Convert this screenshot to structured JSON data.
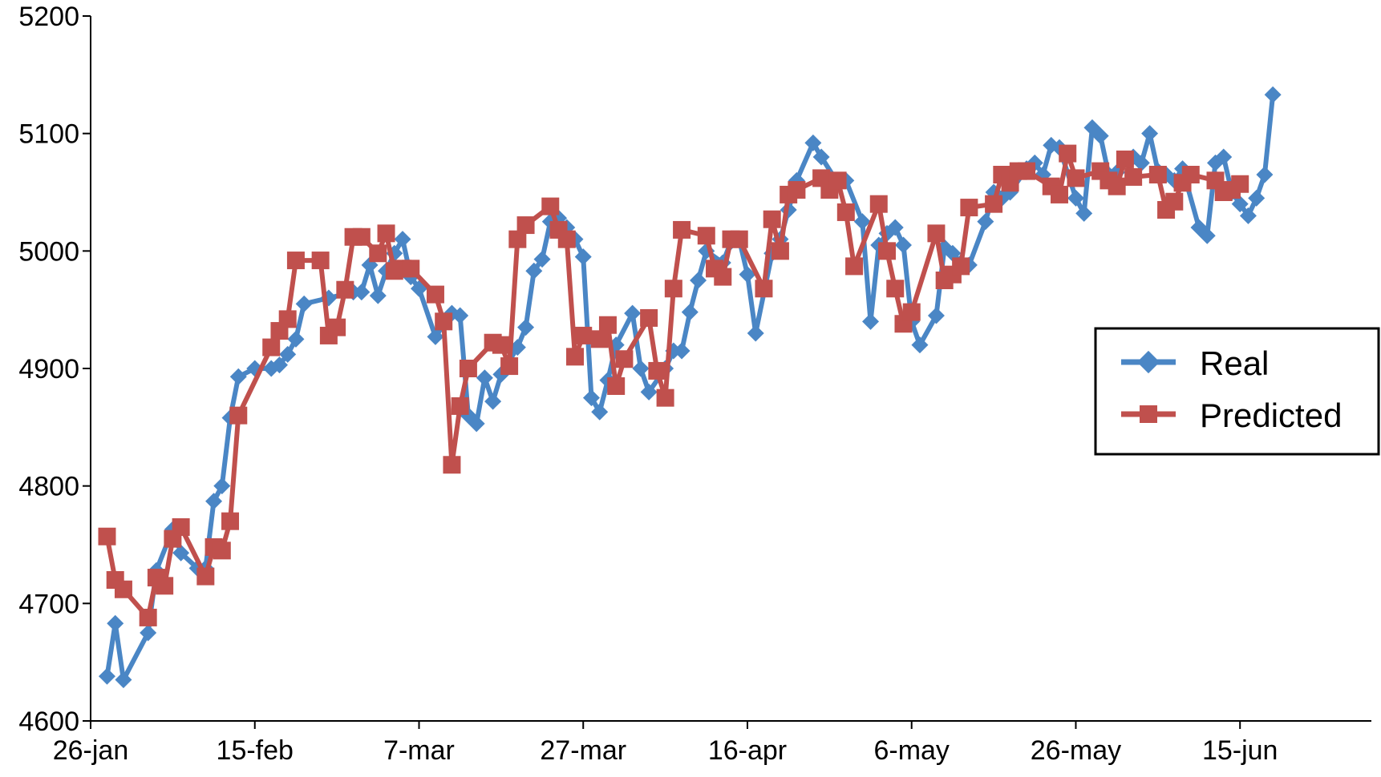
{
  "chart_data": {
    "type": "line",
    "title": "",
    "xlabel": "",
    "ylabel": "",
    "x_unit": "date",
    "xlim": [
      "26-jan",
      "1-jul"
    ],
    "ylim": [
      4600,
      5200
    ],
    "y_ticks": [
      4600,
      4700,
      4800,
      4900,
      5000,
      5100,
      5200
    ],
    "x_ticks": [
      "26-jan",
      "15-feb",
      "7-mar",
      "27-mar",
      "16-apr",
      "6-may",
      "26-may",
      "15-jun"
    ],
    "grid": false,
    "legend_position": "right",
    "series": [
      {
        "name": "Real",
        "color": "#4a86c5",
        "marker": "diamond",
        "points": [
          [
            "28-jan",
            4638
          ],
          [
            "29-jan",
            4683
          ],
          [
            "30-jan",
            4635
          ],
          [
            "2-feb",
            4675
          ],
          [
            "3-feb",
            4728
          ],
          [
            "5-feb",
            4763
          ],
          [
            "6-feb",
            4743
          ],
          [
            "8-feb",
            4730
          ],
          [
            "9-feb",
            4730
          ],
          [
            "10-feb",
            4787
          ],
          [
            "11-feb",
            4800
          ],
          [
            "12-feb",
            4858
          ],
          [
            "13-feb",
            4893
          ],
          [
            "15-feb",
            4900
          ],
          [
            "17-feb",
            4900
          ],
          [
            "18-feb",
            4903
          ],
          [
            "19-feb",
            4912
          ],
          [
            "20-feb",
            4925
          ],
          [
            "21-feb",
            4955
          ],
          [
            "24-feb",
            4960
          ],
          [
            "27-feb",
            4965
          ],
          [
            "28-feb",
            4965
          ],
          [
            "1-mar",
            4988
          ],
          [
            "2-mar",
            4962
          ],
          [
            "3-mar",
            4983
          ],
          [
            "4-mar",
            4998
          ],
          [
            "5-mar",
            5010
          ],
          [
            "6-mar",
            4978
          ],
          [
            "7-mar",
            4968
          ],
          [
            "9-mar",
            4927
          ],
          [
            "11-mar",
            4947
          ],
          [
            "12-mar",
            4945
          ],
          [
            "13-mar",
            4860
          ],
          [
            "14-mar",
            4853
          ],
          [
            "15-mar",
            4892
          ],
          [
            "16-mar",
            4872
          ],
          [
            "17-mar",
            4895
          ],
          [
            "19-mar",
            4918
          ],
          [
            "20-mar",
            4935
          ],
          [
            "21-mar",
            4983
          ],
          [
            "22-mar",
            4993
          ],
          [
            "23-mar",
            5025
          ],
          [
            "24-mar",
            5028
          ],
          [
            "25-mar",
            5020
          ],
          [
            "26-mar",
            5010
          ],
          [
            "27-mar",
            4995
          ],
          [
            "28-mar",
            4875
          ],
          [
            "29-mar",
            4863
          ],
          [
            "30-mar",
            4890
          ],
          [
            "31-mar",
            4920
          ],
          [
            "2-apr",
            4947
          ],
          [
            "3-apr",
            4900
          ],
          [
            "4-apr",
            4880
          ],
          [
            "6-apr",
            4900
          ],
          [
            "7-apr",
            4915
          ],
          [
            "8-apr",
            4915
          ],
          [
            "9-apr",
            4948
          ],
          [
            "10-apr",
            4975
          ],
          [
            "11-apr",
            5000
          ],
          [
            "13-apr",
            4990
          ],
          [
            "14-apr",
            5008
          ],
          [
            "15-apr",
            5010
          ],
          [
            "16-apr",
            4980
          ],
          [
            "17-apr",
            4930
          ],
          [
            "19-apr",
            4998
          ],
          [
            "20-apr",
            5010
          ],
          [
            "21-apr",
            5035
          ],
          [
            "22-apr",
            5060
          ],
          [
            "24-apr",
            5092
          ],
          [
            "25-apr",
            5080
          ],
          [
            "27-apr",
            5058
          ],
          [
            "28-apr",
            5060
          ],
          [
            "30-apr",
            5025
          ],
          [
            "1-may",
            4940
          ],
          [
            "2-may",
            5005
          ],
          [
            "3-may",
            5015
          ],
          [
            "4-may",
            5020
          ],
          [
            "5-may",
            5005
          ],
          [
            "6-may",
            4940
          ],
          [
            "7-may",
            4920
          ],
          [
            "9-may",
            4945
          ],
          [
            "10-may",
            5003
          ],
          [
            "11-may",
            4998
          ],
          [
            "12-may",
            4990
          ],
          [
            "13-may",
            4988
          ],
          [
            "15-may",
            5025
          ],
          [
            "16-may",
            5050
          ],
          [
            "17-may",
            5045
          ],
          [
            "18-may",
            5050
          ],
          [
            "20-may",
            5070
          ],
          [
            "21-may",
            5075
          ],
          [
            "22-may",
            5065
          ],
          [
            "23-may",
            5090
          ],
          [
            "24-may",
            5088
          ],
          [
            "26-may",
            5045
          ],
          [
            "27-may",
            5032
          ],
          [
            "28-may",
            5105
          ],
          [
            "29-may",
            5098
          ],
          [
            "30-may",
            5065
          ],
          [
            "31-may",
            5067
          ],
          [
            "2-jun",
            5080
          ],
          [
            "3-jun",
            5075
          ],
          [
            "4-jun",
            5100
          ],
          [
            "5-jun",
            5068
          ],
          [
            "6-jun",
            5065
          ],
          [
            "7-jun",
            5060
          ],
          [
            "8-jun",
            5070
          ],
          [
            "10-jun",
            5020
          ],
          [
            "11-jun",
            5013
          ],
          [
            "12-jun",
            5075
          ],
          [
            "13-jun",
            5080
          ],
          [
            "14-jun",
            5050
          ],
          [
            "15-jun",
            5040
          ],
          [
            "16-jun",
            5030
          ],
          [
            "17-jun",
            5045
          ],
          [
            "18-jun",
            5065
          ],
          [
            "19-jun",
            5133
          ]
        ]
      },
      {
        "name": "Predicted",
        "color": "#c0504d",
        "marker": "square",
        "points": [
          [
            "28-jan",
            4757
          ],
          [
            "29-jan",
            4720
          ],
          [
            "30-jan",
            4712
          ],
          [
            "2-feb",
            4688
          ],
          [
            "3-feb",
            4722
          ],
          [
            "4-feb",
            4715
          ],
          [
            "5-feb",
            4755
          ],
          [
            "6-feb",
            4765
          ],
          [
            "9-feb",
            4723
          ],
          [
            "10-feb",
            4748
          ],
          [
            "11-feb",
            4745
          ],
          [
            "12-feb",
            4770
          ],
          [
            "13-feb",
            4860
          ],
          [
            "17-feb",
            4918
          ],
          [
            "18-feb",
            4932
          ],
          [
            "19-feb",
            4942
          ],
          [
            "20-feb",
            4992
          ],
          [
            "23-feb",
            4992
          ],
          [
            "24-feb",
            4928
          ],
          [
            "25-feb",
            4935
          ],
          [
            "26-feb",
            4967
          ],
          [
            "27-feb",
            5012
          ],
          [
            "28-feb",
            5012
          ],
          [
            "2-mar",
            4998
          ],
          [
            "3-mar",
            5015
          ],
          [
            "4-mar",
            4983
          ],
          [
            "5-mar",
            4985
          ],
          [
            "6-mar",
            4985
          ],
          [
            "9-mar",
            4963
          ],
          [
            "10-mar",
            4940
          ],
          [
            "11-mar",
            4818
          ],
          [
            "12-mar",
            4868
          ],
          [
            "13-mar",
            4900
          ],
          [
            "16-mar",
            4922
          ],
          [
            "17-mar",
            4920
          ],
          [
            "18-mar",
            4902
          ],
          [
            "19-mar",
            5010
          ],
          [
            "20-mar",
            5022
          ],
          [
            "23-mar",
            5038
          ],
          [
            "24-mar",
            5018
          ],
          [
            "25-mar",
            5010
          ],
          [
            "26-mar",
            4910
          ],
          [
            "27-mar",
            4928
          ],
          [
            "29-mar",
            4925
          ],
          [
            "30-mar",
            4937
          ],
          [
            "31-mar",
            4885
          ],
          [
            "1-apr",
            4908
          ],
          [
            "4-apr",
            4943
          ],
          [
            "5-apr",
            4898
          ],
          [
            "6-apr",
            4875
          ],
          [
            "7-apr",
            4968
          ],
          [
            "8-apr",
            5018
          ],
          [
            "11-apr",
            5013
          ],
          [
            "12-apr",
            4985
          ],
          [
            "13-apr",
            4978
          ],
          [
            "14-apr",
            5010
          ],
          [
            "15-apr",
            5010
          ],
          [
            "18-apr",
            4968
          ],
          [
            "19-apr",
            5027
          ],
          [
            "20-apr",
            5000
          ],
          [
            "21-apr",
            5048
          ],
          [
            "22-apr",
            5052
          ],
          [
            "25-apr",
            5062
          ],
          [
            "26-apr",
            5052
          ],
          [
            "27-apr",
            5060
          ],
          [
            "28-apr",
            5033
          ],
          [
            "29-apr",
            4987
          ],
          [
            "2-may",
            5040
          ],
          [
            "3-may",
            5000
          ],
          [
            "4-may",
            4968
          ],
          [
            "5-may",
            4938
          ],
          [
            "6-may",
            4948
          ],
          [
            "9-may",
            5015
          ],
          [
            "10-may",
            4975
          ],
          [
            "11-may",
            4980
          ],
          [
            "12-may",
            4987
          ],
          [
            "13-may",
            5037
          ],
          [
            "16-may",
            5040
          ],
          [
            "17-may",
            5065
          ],
          [
            "18-may",
            5058
          ],
          [
            "19-may",
            5068
          ],
          [
            "20-may",
            5068
          ],
          [
            "23-may",
            5055
          ],
          [
            "24-may",
            5048
          ],
          [
            "25-may",
            5083
          ],
          [
            "26-may",
            5062
          ],
          [
            "29-may",
            5068
          ],
          [
            "30-may",
            5060
          ],
          [
            "31-may",
            5055
          ],
          [
            "1-jun",
            5078
          ],
          [
            "2-jun",
            5063
          ],
          [
            "5-jun",
            5065
          ],
          [
            "6-jun",
            5035
          ],
          [
            "7-jun",
            5042
          ],
          [
            "8-jun",
            5058
          ],
          [
            "9-jun",
            5065
          ],
          [
            "12-jun",
            5060
          ],
          [
            "13-jun",
            5050
          ],
          [
            "14-jun",
            5052
          ],
          [
            "15-jun",
            5057
          ]
        ]
      }
    ]
  }
}
